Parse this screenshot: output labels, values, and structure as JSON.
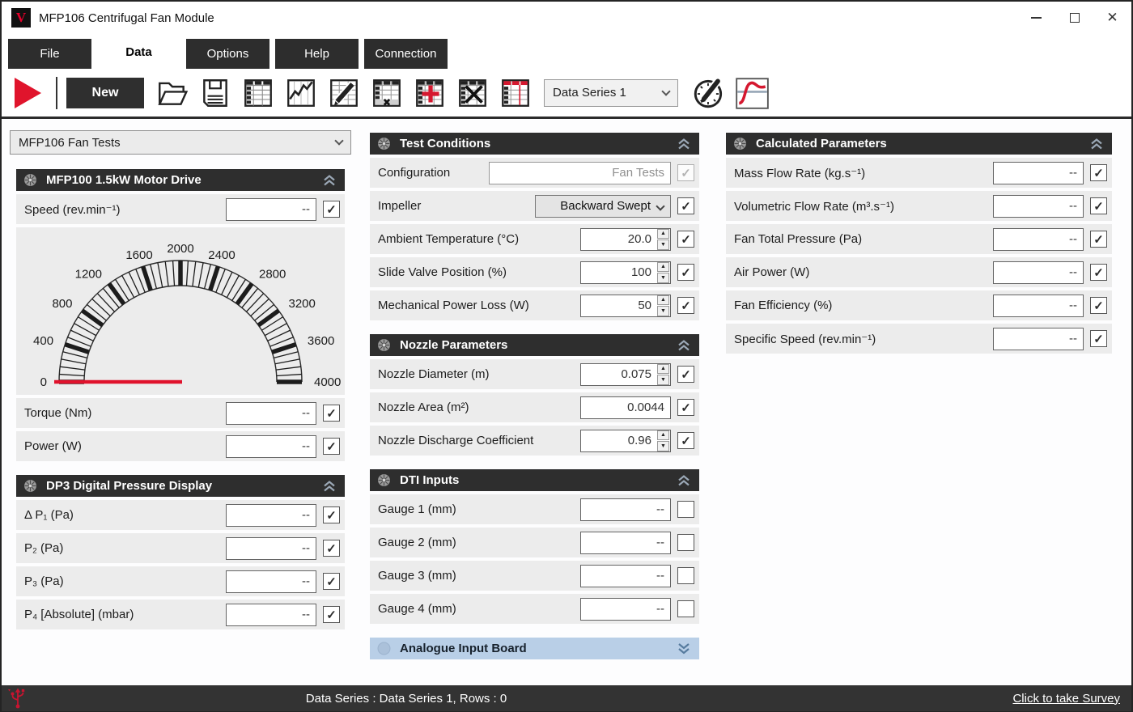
{
  "window": {
    "title": "MFP106 Centrifugal Fan Module",
    "logo_letter": "V",
    "controls": {
      "minimize": "minimize",
      "maximize": "maximize",
      "close": "close"
    }
  },
  "tabs": [
    {
      "label": "File",
      "active": false
    },
    {
      "label": "Data",
      "active": true
    },
    {
      "label": "Options",
      "active": false
    },
    {
      "label": "Help",
      "active": false
    },
    {
      "label": "Connection",
      "active": false
    }
  ],
  "toolbar": {
    "new_label": "New",
    "series_select": {
      "value": "Data Series 1"
    },
    "icons": [
      "run-icon",
      "open-file-icon",
      "save-icon",
      "view-table-icon",
      "view-graph-icon",
      "edit-table-icon",
      "delete-row-icon",
      "add-series-icon",
      "delete-series-icon",
      "series-table-icon",
      "edit-instruments-icon",
      "signal-icon"
    ]
  },
  "left": {
    "config_select": {
      "value": "MFP106 Fan Tests"
    },
    "motor_panel": {
      "title": "MFP100 1.5kW Motor Drive",
      "rows_top": [
        {
          "label": "Speed  (rev.min⁻¹)",
          "value": "--",
          "type": "display",
          "checked": true
        }
      ],
      "gauge": {
        "min": 0,
        "max": 4000,
        "major_step": 400,
        "minor_per_major": 5,
        "needle_value": 0,
        "needle_color": "#e0122c",
        "labels": [
          "0",
          "400",
          "800",
          "1200",
          "1600",
          "2000",
          "2400",
          "2800",
          "3200",
          "3600",
          "4000"
        ]
      },
      "rows_bottom": [
        {
          "label": "Torque  (Nm)",
          "value": "--",
          "type": "display",
          "checked": true
        },
        {
          "label": "Power  (W)",
          "value": "--",
          "type": "display",
          "checked": true
        }
      ]
    },
    "dp3_panel": {
      "title": "DP3 Digital Pressure Display",
      "rows": [
        {
          "label": "Δ P₁  (Pa)",
          "value": "--",
          "type": "display",
          "checked": true
        },
        {
          "label": "P₂  (Pa)",
          "value": "--",
          "type": "display",
          "checked": true
        },
        {
          "label": "P₃  (Pa)",
          "value": "--",
          "type": "display",
          "checked": true
        },
        {
          "label": "P₄ [Absolute]  (mbar)",
          "value": "--",
          "type": "display",
          "checked": true
        }
      ]
    }
  },
  "middle": {
    "test_conditions": {
      "title": "Test Conditions",
      "rows": [
        {
          "label": "Configuration",
          "value": "Fan Tests",
          "type": "disabled_text",
          "checked": true,
          "disabled": true
        },
        {
          "label": "Impeller",
          "value": "Backward Swept",
          "type": "select",
          "checked": true
        },
        {
          "label": "Ambient Temperature (°C)",
          "value": "20.0",
          "type": "spinner",
          "checked": true
        },
        {
          "label": "Slide Valve Position (%)",
          "value": "100",
          "type": "spinner",
          "checked": true
        },
        {
          "label": "Mechanical Power Loss  (W)",
          "value": "50",
          "type": "spinner",
          "checked": true
        }
      ]
    },
    "nozzle": {
      "title": "Nozzle Parameters",
      "rows": [
        {
          "label": "Nozzle Diameter  (m)",
          "value": "0.075",
          "type": "spinner",
          "checked": true
        },
        {
          "label": "Nozzle Area  (m²)",
          "value": "0.0044",
          "type": "display",
          "checked": true
        },
        {
          "label": "Nozzle Discharge Coefficient",
          "value": "0.96",
          "type": "spinner",
          "checked": true
        }
      ]
    },
    "dti": {
      "title": "DTI Inputs",
      "rows": [
        {
          "label": "Gauge 1 (mm)",
          "value": "--",
          "type": "display",
          "checked": false
        },
        {
          "label": "Gauge 2 (mm)",
          "value": "--",
          "type": "display",
          "checked": false
        },
        {
          "label": "Gauge 3 (mm)",
          "value": "--",
          "type": "display",
          "checked": false
        },
        {
          "label": "Gauge 4 (mm)",
          "value": "--",
          "type": "display",
          "checked": false
        }
      ]
    },
    "analogue": {
      "title": "Analogue Input Board"
    }
  },
  "right": {
    "calculated": {
      "title": "Calculated Parameters",
      "rows": [
        {
          "label": "Mass Flow Rate  (kg.s⁻¹)",
          "value": "--",
          "type": "display",
          "checked": true
        },
        {
          "label": "Volumetric Flow Rate  (m³.s⁻¹)",
          "value": "--",
          "type": "display",
          "checked": true
        },
        {
          "label": "Fan Total Pressure  (Pa)",
          "value": "--",
          "type": "display",
          "checked": true
        },
        {
          "label": "Air Power  (W)",
          "value": "--",
          "type": "display",
          "checked": true
        },
        {
          "label": "Fan Efficiency  (%)",
          "value": "--",
          "type": "display",
          "checked": true
        },
        {
          "label": "Specific Speed  (rev.min⁻¹)",
          "value": "--",
          "type": "display",
          "checked": true
        }
      ]
    }
  },
  "statusbar": {
    "text": "Data Series : Data Series 1,  Rows : 0",
    "survey_link": "Click to take Survey"
  },
  "colors": {
    "accent_red": "#e0142c",
    "header_dark": "#2e2e2e",
    "panel_gray": "#ececec",
    "analogue_blue": "#b9cfe7"
  }
}
